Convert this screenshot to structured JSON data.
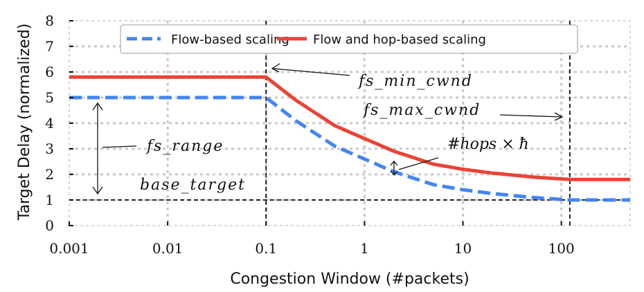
{
  "chart_data": {
    "type": "line",
    "title": "",
    "xlabel": "Congestion Window (#packets)",
    "ylabel": "Target Delay (normalized)",
    "xscale": "log",
    "xlim": [
      0.001,
      500
    ],
    "ylim": [
      0,
      8
    ],
    "grid": true,
    "legend_position": "top-center",
    "x_ticks": [
      0.001,
      0.01,
      0.1,
      1,
      10,
      100
    ],
    "x_tick_labels": [
      "0.001",
      "0.01",
      "0.1",
      "1",
      "10",
      "100"
    ],
    "y_ticks": [
      0,
      1,
      2,
      3,
      4,
      5,
      6,
      7,
      8
    ],
    "y_tick_labels": [
      "0",
      "1",
      "2",
      "3",
      "4",
      "5",
      "6",
      "7",
      "8"
    ],
    "series": [
      {
        "name": "Flow-based scaling",
        "style": "dashed",
        "color": "#4285f4",
        "x": [
          0.001,
          0.1,
          0.2,
          0.5,
          1,
          2,
          5,
          10,
          20,
          50,
          122,
          500
        ],
        "y": [
          5.0,
          5.0,
          4.1,
          3.1,
          2.6,
          2.1,
          1.6,
          1.4,
          1.25,
          1.1,
          1.0,
          1.0
        ]
      },
      {
        "name": "Flow and hop-based scaling",
        "style": "solid",
        "color": "#ea4335",
        "x": [
          0.001,
          0.1,
          0.2,
          0.5,
          1,
          2,
          5,
          10,
          20,
          50,
          122,
          500
        ],
        "y": [
          5.8,
          5.8,
          4.9,
          3.9,
          3.4,
          2.9,
          2.4,
          2.2,
          2.05,
          1.9,
          1.8,
          1.8
        ]
      }
    ],
    "reference_lines": {
      "base_target_y": 1,
      "fs_min_cwnd_x": 0.1,
      "fs_max_cwnd_x": 122
    },
    "annotations": {
      "fs_min_cwnd": "fs_min_cwnd",
      "fs_max_cwnd": "fs_max_cwnd",
      "fs_range": "fs_range",
      "base_target": "base_target",
      "hops": "#hops × ħ"
    }
  }
}
